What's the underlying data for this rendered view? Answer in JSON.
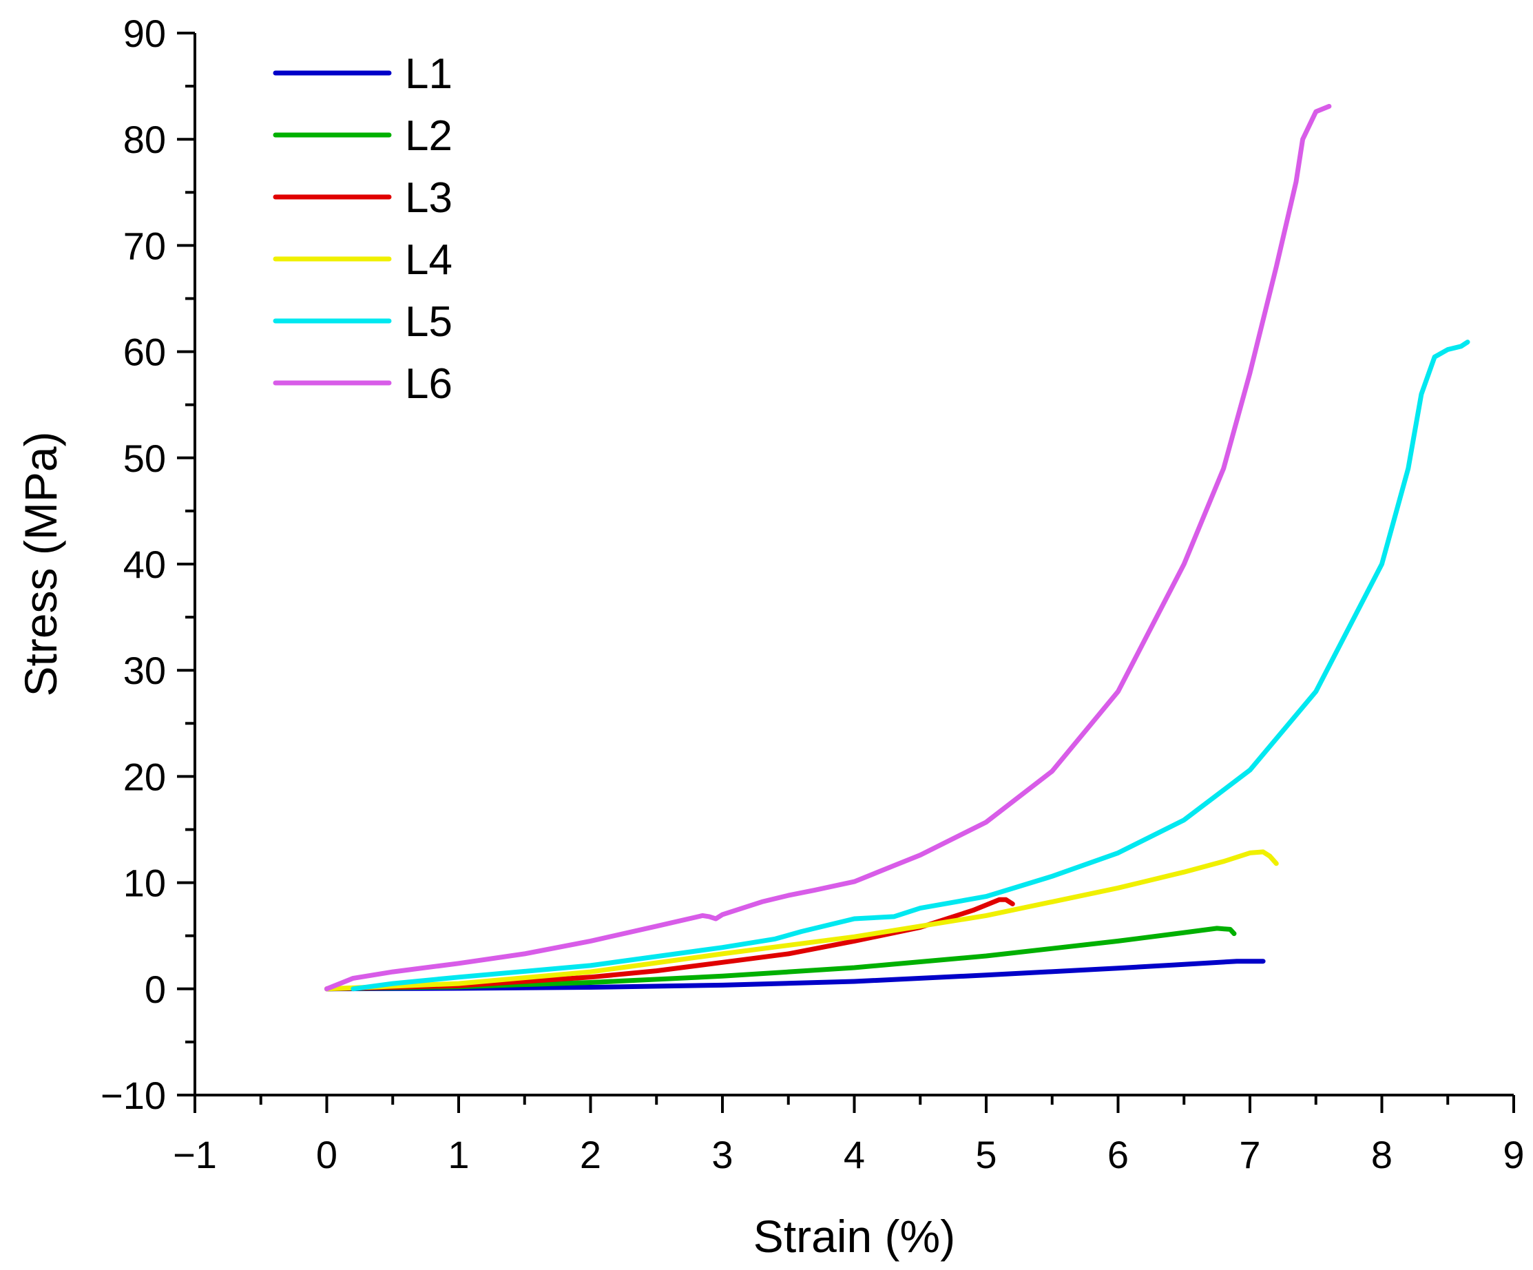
{
  "chart_data": {
    "type": "line",
    "title": "",
    "xlabel": "Strain (%)",
    "ylabel": "Stress (MPa)",
    "xlim": [
      -1,
      9
    ],
    "ylim": [
      -10,
      90
    ],
    "xticks": [
      -1,
      0,
      1,
      2,
      3,
      4,
      5,
      6,
      7,
      8,
      9
    ],
    "yticks": [
      -10,
      0,
      10,
      20,
      30,
      40,
      50,
      60,
      70,
      80,
      90
    ],
    "xtick_labels": [
      "−1",
      "0",
      "1",
      "2",
      "3",
      "4",
      "5",
      "6",
      "7",
      "8",
      "9"
    ],
    "ytick_labels": [
      "−10",
      "0",
      "10",
      "20",
      "30",
      "40",
      "50",
      "60",
      "70",
      "80",
      "90"
    ],
    "grid": false,
    "legend_position": "top-left",
    "series": [
      {
        "name": "L1",
        "color": "#0000c8",
        "points": [
          [
            0,
            0
          ],
          [
            1,
            0.05
          ],
          [
            2,
            0.15
          ],
          [
            3,
            0.35
          ],
          [
            4,
            0.7
          ],
          [
            5,
            1.3
          ],
          [
            6,
            1.95
          ],
          [
            6.5,
            2.3
          ],
          [
            6.9,
            2.6
          ],
          [
            7.1,
            2.6
          ]
        ]
      },
      {
        "name": "L2",
        "color": "#00b000",
        "points": [
          [
            0,
            0
          ],
          [
            1,
            0.2
          ],
          [
            2,
            0.6
          ],
          [
            3,
            1.2
          ],
          [
            4,
            2.0
          ],
          [
            5,
            3.1
          ],
          [
            5.5,
            3.8
          ],
          [
            6,
            4.5
          ],
          [
            6.5,
            5.3
          ],
          [
            6.75,
            5.7
          ],
          [
            6.85,
            5.6
          ],
          [
            6.88,
            5.2
          ]
        ]
      },
      {
        "name": "L3",
        "color": "#e00000",
        "points": [
          [
            0,
            0
          ],
          [
            1,
            0.3
          ],
          [
            2,
            1.1
          ],
          [
            2.5,
            1.7
          ],
          [
            3,
            2.5
          ],
          [
            3.5,
            3.3
          ],
          [
            4,
            4.5
          ],
          [
            4.5,
            5.8
          ],
          [
            4.9,
            7.4
          ],
          [
            5.1,
            8.4
          ],
          [
            5.15,
            8.4
          ],
          [
            5.2,
            8.0
          ]
        ]
      },
      {
        "name": "L4",
        "color": "#f0f000",
        "points": [
          [
            0,
            0
          ],
          [
            1,
            0.5
          ],
          [
            2,
            1.6
          ],
          [
            3,
            3.3
          ],
          [
            4,
            4.9
          ],
          [
            5,
            6.9
          ],
          [
            5.5,
            8.2
          ],
          [
            6,
            9.5
          ],
          [
            6.5,
            11
          ],
          [
            6.8,
            12
          ],
          [
            7.0,
            12.8
          ],
          [
            7.1,
            12.9
          ],
          [
            7.15,
            12.5
          ],
          [
            7.2,
            11.8
          ]
        ]
      },
      {
        "name": "L5",
        "color": "#00e8f0",
        "points": [
          [
            0.2,
            0
          ],
          [
            0.5,
            0.5
          ],
          [
            1,
            1.1
          ],
          [
            2,
            2.2
          ],
          [
            3,
            3.9
          ],
          [
            3.4,
            4.7
          ],
          [
            3.6,
            5.4
          ],
          [
            4,
            6.6
          ],
          [
            4.3,
            6.8
          ],
          [
            4.5,
            7.6
          ],
          [
            5,
            8.7
          ],
          [
            5.5,
            10.6
          ],
          [
            6,
            12.8
          ],
          [
            6.5,
            15.9
          ],
          [
            7,
            20.6
          ],
          [
            7.5,
            28
          ],
          [
            8,
            40
          ],
          [
            8.2,
            49
          ],
          [
            8.3,
            56
          ],
          [
            8.4,
            59.5
          ],
          [
            8.5,
            60.2
          ],
          [
            8.6,
            60.5
          ],
          [
            8.65,
            60.9
          ]
        ]
      },
      {
        "name": "L6",
        "color": "#d85ce8",
        "points": [
          [
            0,
            0
          ],
          [
            0.2,
            1
          ],
          [
            0.5,
            1.6
          ],
          [
            1,
            2.4
          ],
          [
            1.5,
            3.3
          ],
          [
            2,
            4.5
          ],
          [
            2.5,
            5.9
          ],
          [
            2.85,
            6.9
          ],
          [
            2.9,
            6.8
          ],
          [
            2.95,
            6.6
          ],
          [
            3,
            7.0
          ],
          [
            3.3,
            8.2
          ],
          [
            3.5,
            8.8
          ],
          [
            3.7,
            9.3
          ],
          [
            4,
            10.1
          ],
          [
            4.3,
            11.6
          ],
          [
            4.5,
            12.6
          ],
          [
            5,
            15.7
          ],
          [
            5.5,
            20.5
          ],
          [
            6,
            28
          ],
          [
            6.5,
            40
          ],
          [
            6.8,
            49
          ],
          [
            7,
            58
          ],
          [
            7.2,
            68
          ],
          [
            7.35,
            76
          ],
          [
            7.4,
            80
          ],
          [
            7.5,
            82.6
          ],
          [
            7.6,
            83.1
          ]
        ]
      }
    ]
  }
}
